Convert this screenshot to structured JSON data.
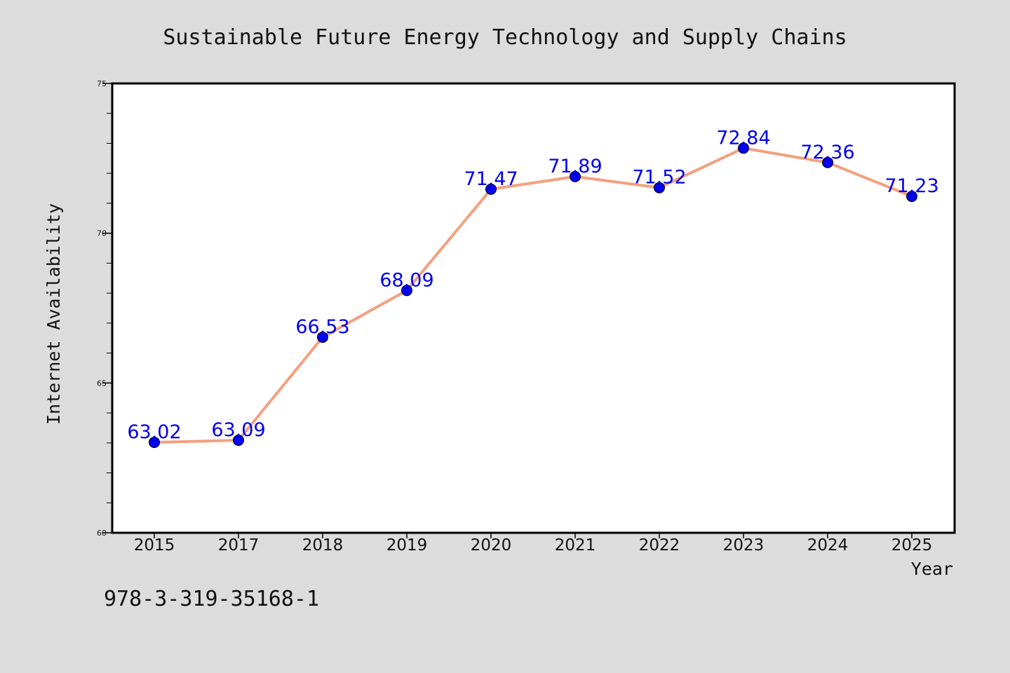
{
  "chart_data": {
    "type": "line",
    "title": "Sustainable Future Energy Technology and Supply Chains",
    "xlabel": "Year",
    "ylabel": "Internet Availability",
    "categories": [
      "2015",
      "2017",
      "2018",
      "2019",
      "2020",
      "2021",
      "2022",
      "2023",
      "2024",
      "2025"
    ],
    "series": [
      {
        "values": [
          63.02,
          63.09,
          66.53,
          68.09,
          71.47,
          71.89,
          71.52,
          72.84,
          72.36,
          71.23
        ],
        "data_labels": [
          "63.02",
          "63.09",
          "66.53",
          "68.09",
          "71.47",
          "71.89",
          "71.52",
          "72.84",
          "72.36",
          "71.23"
        ],
        "line_color": "#f4a07e",
        "marker_color": "#0000ee",
        "label_color": "#0000ee"
      }
    ],
    "ylim": [
      60,
      75
    ],
    "yticks": [
      "60",
      "65",
      "70",
      "75"
    ],
    "ytick_values": [
      60,
      65,
      70,
      75
    ],
    "y_minor_step": 1,
    "grid": false,
    "legend": "none"
  },
  "caption": "978-3-319-35168-1",
  "colors": {
    "background": "#dcdcdc",
    "plot_area": "#ffffff",
    "frame": "#000000"
  }
}
